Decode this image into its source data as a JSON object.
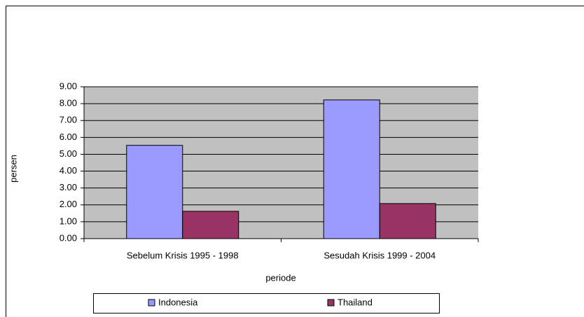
{
  "chart_data": {
    "type": "bar",
    "categories": [
      "Sebelum Krisis 1995 - 1998",
      "Sesudah Krisis 1999 - 2004"
    ],
    "series": [
      {
        "name": "Indonesia",
        "color": "#9999ff",
        "values": [
          5.53,
          8.22
        ]
      },
      {
        "name": "Thailand",
        "color": "#993366",
        "values": [
          1.62,
          2.08
        ]
      }
    ],
    "xlabel": "periode",
    "ylabel": "persen",
    "ylim": [
      0,
      9
    ],
    "yticks": [
      {
        "value": 0,
        "label": "0.00"
      },
      {
        "value": 1,
        "label": "1.00"
      },
      {
        "value": 2,
        "label": "2.00"
      },
      {
        "value": 3,
        "label": "3.00"
      },
      {
        "value": 4,
        "label": "4.00"
      },
      {
        "value": 5,
        "label": "5.00"
      },
      {
        "value": 6,
        "label": "6.00"
      },
      {
        "value": 7,
        "label": "7.00"
      },
      {
        "value": 8,
        "label": "8.00"
      },
      {
        "value": 9,
        "label": "9.00"
      }
    ],
    "grid": true,
    "legend": "bottom"
  }
}
